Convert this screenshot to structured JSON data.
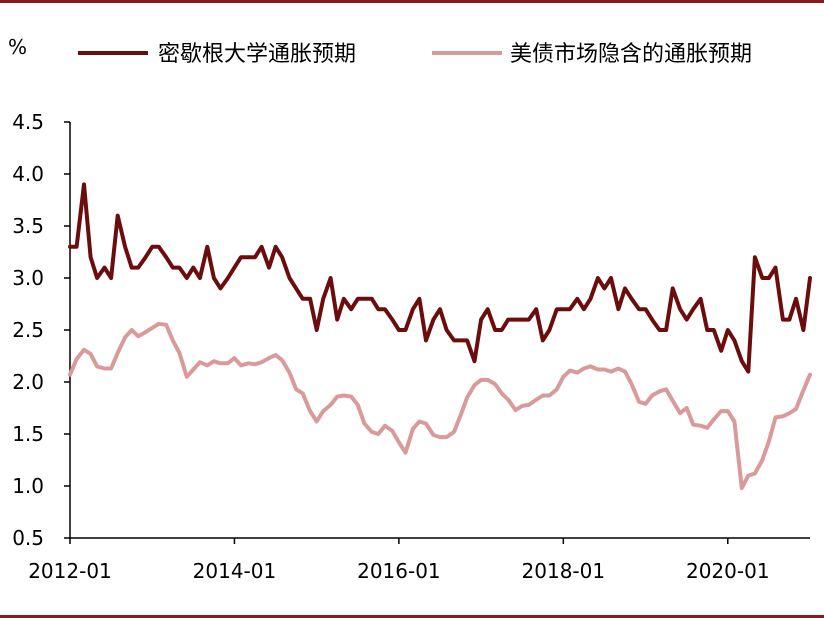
{
  "colors": {
    "frame": "#8b1a1a",
    "series_michigan": "#6b0d0d",
    "series_breakeven": "#d99a9a",
    "axis": "#000000"
  },
  "chart_data": {
    "type": "line",
    "title": "",
    "unit": "%",
    "xlabel": "",
    "ylabel": "%",
    "ylim": [
      0.5,
      4.5
    ],
    "yticks": [
      "0.5",
      "1.0",
      "1.5",
      "2.0",
      "2.5",
      "3.0",
      "3.5",
      "4.0",
      "4.5"
    ],
    "xticks": [
      {
        "label": "2012-01",
        "x": 2012.0
      },
      {
        "label": "2014-01",
        "x": 2014.0
      },
      {
        "label": "2016-01",
        "x": 2016.0
      },
      {
        "label": "2018-01",
        "x": 2018.0
      },
      {
        "label": "2020-01",
        "x": 2020.0
      }
    ],
    "xlim": [
      2012.0,
      2021.0
    ],
    "legend_position": "top",
    "grid": false,
    "series": [
      {
        "name": "密歇根大学通胀预期",
        "color": "#6b0d0d",
        "points": [
          [
            2012.0,
            3.3
          ],
          [
            2012.08,
            3.3
          ],
          [
            2012.17,
            3.9
          ],
          [
            2012.25,
            3.2
          ],
          [
            2012.33,
            3.0
          ],
          [
            2012.42,
            3.1
          ],
          [
            2012.5,
            3.0
          ],
          [
            2012.58,
            3.6
          ],
          [
            2012.67,
            3.3
          ],
          [
            2012.75,
            3.1
          ],
          [
            2012.83,
            3.1
          ],
          [
            2012.92,
            3.2
          ],
          [
            2013.0,
            3.3
          ],
          [
            2013.08,
            3.3
          ],
          [
            2013.17,
            3.2
          ],
          [
            2013.25,
            3.1
          ],
          [
            2013.33,
            3.1
          ],
          [
            2013.42,
            3.0
          ],
          [
            2013.5,
            3.1
          ],
          [
            2013.58,
            3.0
          ],
          [
            2013.67,
            3.3
          ],
          [
            2013.75,
            3.0
          ],
          [
            2013.83,
            2.9
          ],
          [
            2013.92,
            3.0
          ],
          [
            2014.0,
            3.1
          ],
          [
            2014.08,
            3.2
          ],
          [
            2014.17,
            3.2
          ],
          [
            2014.25,
            3.2
          ],
          [
            2014.33,
            3.3
          ],
          [
            2014.42,
            3.1
          ],
          [
            2014.5,
            3.3
          ],
          [
            2014.58,
            3.2
          ],
          [
            2014.67,
            3.0
          ],
          [
            2014.75,
            2.9
          ],
          [
            2014.83,
            2.8
          ],
          [
            2014.92,
            2.8
          ],
          [
            2015.0,
            2.5
          ],
          [
            2015.08,
            2.8
          ],
          [
            2015.17,
            3.0
          ],
          [
            2015.25,
            2.6
          ],
          [
            2015.33,
            2.8
          ],
          [
            2015.42,
            2.7
          ],
          [
            2015.5,
            2.8
          ],
          [
            2015.58,
            2.8
          ],
          [
            2015.67,
            2.8
          ],
          [
            2015.75,
            2.7
          ],
          [
            2015.83,
            2.7
          ],
          [
            2015.92,
            2.6
          ],
          [
            2016.0,
            2.5
          ],
          [
            2016.08,
            2.5
          ],
          [
            2016.17,
            2.7
          ],
          [
            2016.25,
            2.8
          ],
          [
            2016.33,
            2.4
          ],
          [
            2016.42,
            2.6
          ],
          [
            2016.5,
            2.7
          ],
          [
            2016.58,
            2.5
          ],
          [
            2016.67,
            2.4
          ],
          [
            2016.75,
            2.4
          ],
          [
            2016.83,
            2.4
          ],
          [
            2016.92,
            2.2
          ],
          [
            2017.0,
            2.6
          ],
          [
            2017.08,
            2.7
          ],
          [
            2017.17,
            2.5
          ],
          [
            2017.25,
            2.5
          ],
          [
            2017.33,
            2.6
          ],
          [
            2017.42,
            2.6
          ],
          [
            2017.5,
            2.6
          ],
          [
            2017.58,
            2.6
          ],
          [
            2017.67,
            2.7
          ],
          [
            2017.75,
            2.4
          ],
          [
            2017.83,
            2.5
          ],
          [
            2017.92,
            2.7
          ],
          [
            2018.0,
            2.7
          ],
          [
            2018.08,
            2.7
          ],
          [
            2018.17,
            2.8
          ],
          [
            2018.25,
            2.7
          ],
          [
            2018.33,
            2.8
          ],
          [
            2018.42,
            3.0
          ],
          [
            2018.5,
            2.9
          ],
          [
            2018.58,
            3.0
          ],
          [
            2018.67,
            2.7
          ],
          [
            2018.75,
            2.9
          ],
          [
            2018.83,
            2.8
          ],
          [
            2018.92,
            2.7
          ],
          [
            2019.0,
            2.7
          ],
          [
            2019.08,
            2.6
          ],
          [
            2019.17,
            2.5
          ],
          [
            2019.25,
            2.5
          ],
          [
            2019.33,
            2.9
          ],
          [
            2019.42,
            2.7
          ],
          [
            2019.5,
            2.6
          ],
          [
            2019.58,
            2.7
          ],
          [
            2019.67,
            2.8
          ],
          [
            2019.75,
            2.5
          ],
          [
            2019.83,
            2.5
          ],
          [
            2019.92,
            2.3
          ],
          [
            2020.0,
            2.5
          ],
          [
            2020.08,
            2.4
          ],
          [
            2020.17,
            2.2
          ],
          [
            2020.25,
            2.1
          ],
          [
            2020.33,
            3.2
          ],
          [
            2020.42,
            3.0
          ],
          [
            2020.5,
            3.0
          ],
          [
            2020.58,
            3.1
          ],
          [
            2020.67,
            2.6
          ],
          [
            2020.75,
            2.6
          ],
          [
            2020.83,
            2.8
          ],
          [
            2020.92,
            2.5
          ],
          [
            2021.0,
            3.0
          ]
        ]
      },
      {
        "name": "美债市场隐含的通胀预期",
        "color": "#d99a9a",
        "points": [
          [
            2012.0,
            2.07
          ],
          [
            2012.08,
            2.22
          ],
          [
            2012.17,
            2.31
          ],
          [
            2012.25,
            2.27
          ],
          [
            2012.33,
            2.15
          ],
          [
            2012.42,
            2.13
          ],
          [
            2012.5,
            2.13
          ],
          [
            2012.58,
            2.28
          ],
          [
            2012.67,
            2.43
          ],
          [
            2012.75,
            2.5
          ],
          [
            2012.83,
            2.44
          ],
          [
            2012.92,
            2.48
          ],
          [
            2013.0,
            2.52
          ],
          [
            2013.08,
            2.56
          ],
          [
            2013.17,
            2.55
          ],
          [
            2013.25,
            2.4
          ],
          [
            2013.33,
            2.28
          ],
          [
            2013.42,
            2.05
          ],
          [
            2013.5,
            2.12
          ],
          [
            2013.58,
            2.19
          ],
          [
            2013.67,
            2.16
          ],
          [
            2013.75,
            2.2
          ],
          [
            2013.83,
            2.18
          ],
          [
            2013.92,
            2.18
          ],
          [
            2014.0,
            2.23
          ],
          [
            2014.08,
            2.16
          ],
          [
            2014.17,
            2.18
          ],
          [
            2014.25,
            2.17
          ],
          [
            2014.33,
            2.19
          ],
          [
            2014.42,
            2.23
          ],
          [
            2014.5,
            2.26
          ],
          [
            2014.58,
            2.21
          ],
          [
            2014.67,
            2.09
          ],
          [
            2014.75,
            1.93
          ],
          [
            2014.83,
            1.89
          ],
          [
            2014.92,
            1.72
          ],
          [
            2015.0,
            1.62
          ],
          [
            2015.08,
            1.72
          ],
          [
            2015.17,
            1.78
          ],
          [
            2015.25,
            1.86
          ],
          [
            2015.33,
            1.87
          ],
          [
            2015.42,
            1.86
          ],
          [
            2015.5,
            1.78
          ],
          [
            2015.58,
            1.6
          ],
          [
            2015.67,
            1.52
          ],
          [
            2015.75,
            1.5
          ],
          [
            2015.83,
            1.58
          ],
          [
            2015.92,
            1.53
          ],
          [
            2016.0,
            1.42
          ],
          [
            2016.08,
            1.32
          ],
          [
            2016.17,
            1.55
          ],
          [
            2016.25,
            1.62
          ],
          [
            2016.33,
            1.6
          ],
          [
            2016.42,
            1.49
          ],
          [
            2016.5,
            1.47
          ],
          [
            2016.58,
            1.47
          ],
          [
            2016.67,
            1.52
          ],
          [
            2016.75,
            1.68
          ],
          [
            2016.83,
            1.85
          ],
          [
            2016.92,
            1.97
          ],
          [
            2017.0,
            2.02
          ],
          [
            2017.08,
            2.02
          ],
          [
            2017.17,
            1.98
          ],
          [
            2017.25,
            1.89
          ],
          [
            2017.33,
            1.83
          ],
          [
            2017.42,
            1.73
          ],
          [
            2017.5,
            1.77
          ],
          [
            2017.58,
            1.78
          ],
          [
            2017.67,
            1.83
          ],
          [
            2017.75,
            1.87
          ],
          [
            2017.83,
            1.87
          ],
          [
            2017.92,
            1.93
          ],
          [
            2018.0,
            2.05
          ],
          [
            2018.08,
            2.11
          ],
          [
            2018.17,
            2.09
          ],
          [
            2018.25,
            2.13
          ],
          [
            2018.33,
            2.15
          ],
          [
            2018.42,
            2.12
          ],
          [
            2018.5,
            2.12
          ],
          [
            2018.58,
            2.1
          ],
          [
            2018.67,
            2.13
          ],
          [
            2018.75,
            2.1
          ],
          [
            2018.83,
            1.98
          ],
          [
            2018.92,
            1.81
          ],
          [
            2019.0,
            1.79
          ],
          [
            2019.08,
            1.87
          ],
          [
            2019.17,
            1.91
          ],
          [
            2019.25,
            1.93
          ],
          [
            2019.33,
            1.82
          ],
          [
            2019.42,
            1.7
          ],
          [
            2019.5,
            1.75
          ],
          [
            2019.58,
            1.59
          ],
          [
            2019.67,
            1.58
          ],
          [
            2019.75,
            1.56
          ],
          [
            2019.83,
            1.64
          ],
          [
            2019.92,
            1.72
          ],
          [
            2020.0,
            1.72
          ],
          [
            2020.08,
            1.62
          ],
          [
            2020.17,
            0.98
          ],
          [
            2020.25,
            1.1
          ],
          [
            2020.33,
            1.12
          ],
          [
            2020.42,
            1.25
          ],
          [
            2020.5,
            1.43
          ],
          [
            2020.58,
            1.66
          ],
          [
            2020.67,
            1.67
          ],
          [
            2020.75,
            1.7
          ],
          [
            2020.83,
            1.74
          ],
          [
            2020.92,
            1.92
          ],
          [
            2021.0,
            2.07
          ]
        ]
      }
    ]
  }
}
